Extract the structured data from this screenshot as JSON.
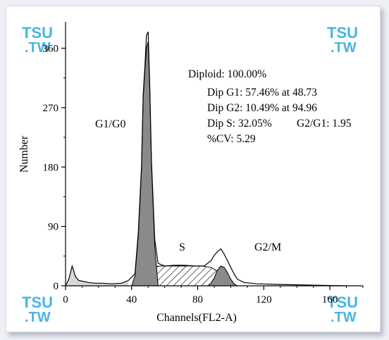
{
  "watermark": {
    "line1": "TSU",
    "line2": ".TW"
  },
  "chart_data": {
    "type": "area",
    "title": "",
    "xlabel": "Channels(FL2-A)",
    "ylabel": "Number",
    "xlim": [
      0,
      180
    ],
    "ylim": [
      0,
      400
    ],
    "x_ticks": [
      0,
      40,
      80,
      120,
      160
    ],
    "y_ticks": [
      0,
      90,
      180,
      270,
      360
    ],
    "histogram": {
      "x": [
        0,
        2,
        4,
        6,
        8,
        10,
        14,
        18,
        22,
        28,
        34,
        38,
        42,
        44,
        46,
        47,
        48,
        49,
        50,
        51,
        52,
        54,
        56,
        60,
        66,
        72,
        78,
        84,
        88,
        90,
        92,
        94,
        96,
        98,
        100,
        102,
        104,
        108,
        116,
        130,
        150,
        170
      ],
      "y": [
        0,
        10,
        30,
        14,
        8,
        7,
        5,
        4,
        4,
        3,
        4,
        8,
        18,
        80,
        180,
        290,
        330,
        380,
        385,
        300,
        190,
        70,
        34,
        30,
        31,
        31,
        30,
        30,
        38,
        46,
        52,
        56,
        48,
        38,
        28,
        18,
        10,
        5,
        3,
        2,
        1,
        0
      ]
    },
    "components": [
      {
        "name": "G1/G0",
        "peak_at": 48.73,
        "x": [
          40,
          42,
          44,
          46,
          47,
          48,
          49,
          50,
          51,
          52,
          54,
          56
        ],
        "y": [
          0,
          15,
          75,
          175,
          285,
          325,
          360,
          370,
          295,
          185,
          60,
          0
        ]
      },
      {
        "name": "S",
        "x": [
          46,
          48,
          50,
          52,
          54,
          58,
          66,
          74,
          82,
          88,
          92,
          96,
          100
        ],
        "y": [
          0,
          18,
          26,
          28,
          29,
          30,
          30,
          30,
          30,
          28,
          22,
          10,
          0
        ]
      },
      {
        "name": "G2/M",
        "peak_at": 94.96,
        "x": [
          86,
          88,
          90,
          92,
          94,
          96,
          98,
          100,
          102,
          104
        ],
        "y": [
          0,
          4,
          12,
          24,
          30,
          28,
          20,
          10,
          3,
          0
        ]
      }
    ],
    "annotations": [
      "Diploid: 100.00%",
      "Dip G1: 57.46% at 48.73",
      "Dip G2: 10.49% at 94.96",
      "Dip S: 32.05%",
      "G2/G1: 1.95",
      "%CV: 5.29"
    ],
    "phase_labels": [
      "G1/G0",
      "S",
      "G2/M"
    ],
    "colors": {
      "peak_fill": "#8a8a8a",
      "s_hatch": "#000000",
      "background_fill": "#d8d8d8"
    }
  }
}
